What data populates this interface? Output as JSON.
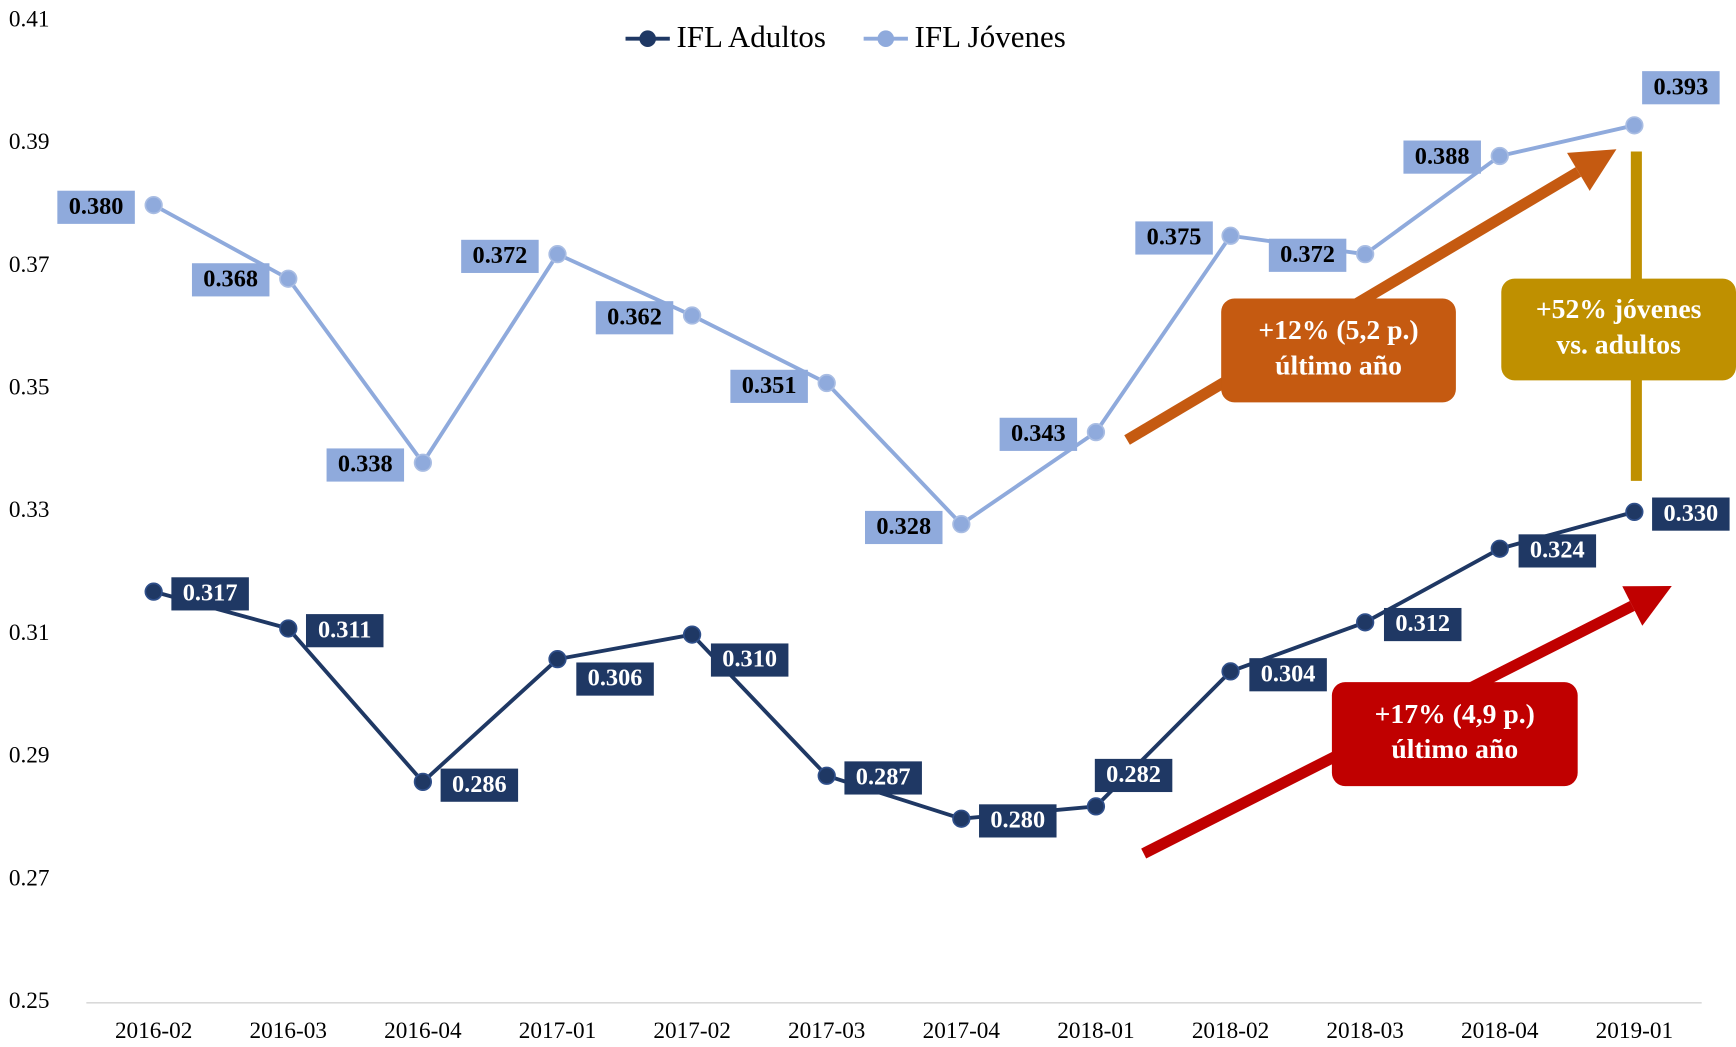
{
  "chart_data": {
    "type": "line",
    "categories": [
      "2016-02",
      "2016-03",
      "2016-04",
      "2017-01",
      "2017-02",
      "2017-03",
      "2017-04",
      "2018-01",
      "2018-02",
      "2018-03",
      "2018-04",
      "2019-01"
    ],
    "series": [
      {
        "name": "IFL Adultos",
        "color": "#1f3864",
        "values": [
          0.317,
          0.311,
          0.286,
          0.306,
          0.31,
          0.287,
          0.28,
          0.282,
          0.304,
          0.312,
          0.324,
          0.33
        ],
        "value_labels": [
          "0.317",
          "0.311",
          "0.286",
          "0.306",
          "0.310",
          "0.287",
          "0.280",
          "0.282",
          "0.304",
          "0.312",
          "0.324",
          "0.330"
        ]
      },
      {
        "name": "IFL Jóvenes",
        "color": "#8faadc",
        "values": [
          0.38,
          0.368,
          0.338,
          0.372,
          0.362,
          0.351,
          0.328,
          0.343,
          0.375,
          0.372,
          0.388,
          0.393
        ],
        "value_labels": [
          "0.380",
          "0.368",
          "0.338",
          "0.372",
          "0.362",
          "0.351",
          "0.328",
          "0.343",
          "0.375",
          "0.372",
          "0.388",
          "0.393"
        ]
      }
    ],
    "ylim": [
      0.25,
      0.41
    ],
    "yticks": [
      0.25,
      0.27,
      0.29,
      0.31,
      0.33,
      0.35,
      0.37,
      0.39,
      0.41
    ],
    "legend": "top",
    "annotations": [
      {
        "lines": [
          "+12% (5,2 p.)",
          "último año"
        ],
        "color": "#c55a11"
      },
      {
        "lines": [
          "+52% jóvenes",
          "vs. adultos"
        ],
        "color": "#bf9000"
      },
      {
        "lines": [
          "+17% (4,9 p.)",
          "último año"
        ],
        "color": "#c00000"
      }
    ]
  }
}
